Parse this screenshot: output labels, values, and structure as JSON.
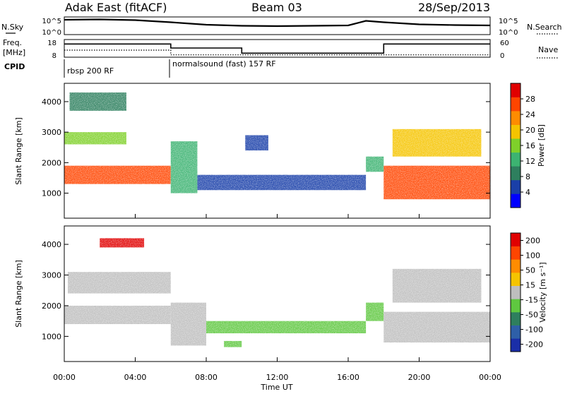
{
  "header": {
    "radar_name": "Adak East (fitACF)",
    "beam": "Beam 03",
    "date": "28/Sep/2013"
  },
  "left_labels": {
    "nsky": "N.Sky",
    "freq": "Freq.",
    "freq_unit": "[MHz]",
    "cpid": "CPID"
  },
  "right_labels": {
    "nsearch": "N.Search",
    "nave": "Nave"
  },
  "cpid_segments": [
    "rbsp 200 RF",
    "normalsound (fast) 157 RF"
  ],
  "colors": {
    "scale_power": [
      "#0000ff",
      "#1a3fa8",
      "#2e7f5e",
      "#3cb371",
      "#7fd02a",
      "#f5c400",
      "#ff8c00",
      "#ff4500",
      "#e00000"
    ],
    "scale_velocity": [
      "#1a2ea8",
      "#2e5fa8",
      "#2e7f5e",
      "#5fc840",
      "#bebebe",
      "#f5c400",
      "#ff8c00",
      "#ff4500",
      "#e00000"
    ],
    "gray": "#bebebe"
  },
  "chart_data": [
    {
      "type": "line",
      "panel": "noise",
      "yticks_left": [
        "10^5",
        "10^0"
      ],
      "yticks_right": [
        "10^5",
        "10^0"
      ],
      "series": [
        {
          "name": "N.Sky",
          "x_hours": [
            0,
            2,
            4,
            6,
            8,
            10,
            12,
            14,
            16,
            17,
            18,
            20,
            22,
            24
          ],
          "log10_values": [
            4.2,
            4.3,
            4.1,
            3.5,
            2.8,
            2.5,
            2.4,
            2.5,
            2.6,
            3.9,
            3.5,
            2.9,
            2.7,
            2.6
          ]
        }
      ]
    },
    {
      "type": "line",
      "panel": "frequency",
      "yticks_left": [
        "18",
        "8"
      ],
      "yticks_right": [
        "60",
        "0"
      ],
      "series": [
        {
          "name": "Freq.",
          "x_hours": [
            0,
            6,
            6,
            10,
            10,
            18,
            18,
            24
          ],
          "values": [
            15.5,
            15.5,
            13.2,
            13.2,
            10.3,
            10.3,
            15.5,
            15.5
          ]
        },
        {
          "name": "Nave",
          "x_hours": [
            0,
            6,
            6,
            24
          ],
          "values": [
            24,
            24,
            8,
            8
          ]
        }
      ]
    },
    {
      "type": "heatmap",
      "panel": "power",
      "ylabel": "Slant Range [km]",
      "colorbar_label": "Power [dB]",
      "colorbar_ticks": [
        "4",
        "8",
        "12",
        "16",
        "20",
        "24",
        "28"
      ],
      "yticks": [
        "1000",
        "2000",
        "3000",
        "4000"
      ],
      "ylim": [
        180,
        4600
      ],
      "xlim_hours": [
        0,
        24
      ],
      "bands": [
        {
          "x": [
            0.0,
            6.0
          ],
          "range_km": [
            1300,
            1900
          ],
          "level": 7
        },
        {
          "x": [
            0.0,
            3.5
          ],
          "range_km": [
            2600,
            3000
          ],
          "level": 4
        },
        {
          "x": [
            0.3,
            3.5
          ],
          "range_km": [
            3700,
            4300
          ],
          "level": 2
        },
        {
          "x": [
            6.0,
            7.5
          ],
          "range_km": [
            1000,
            2700
          ],
          "level": 3
        },
        {
          "x": [
            7.5,
            17.0
          ],
          "range_km": [
            1100,
            1600
          ],
          "level": 1
        },
        {
          "x": [
            10.2,
            11.5
          ],
          "range_km": [
            2400,
            2900
          ],
          "level": 1
        },
        {
          "x": [
            18.0,
            24.0
          ],
          "range_km": [
            800,
            1900
          ],
          "level": 7
        },
        {
          "x": [
            18.5,
            23.5
          ],
          "range_km": [
            2200,
            3100
          ],
          "level": 5
        },
        {
          "x": [
            17.0,
            18.0
          ],
          "range_km": [
            1700,
            2200
          ],
          "level": 3
        }
      ]
    },
    {
      "type": "heatmap",
      "panel": "velocity",
      "ylabel": "Slant Range [km]",
      "colorbar_label": "Velocity [m s⁻¹]",
      "colorbar_ticks": [
        "200",
        "100",
        "50",
        "15",
        "-15",
        "-50",
        "-100",
        "-200"
      ],
      "yticks": [
        "1000",
        "2000",
        "3000",
        "4000"
      ],
      "ylim": [
        180,
        4600
      ],
      "xlim_hours": [
        0,
        24
      ],
      "bands": [
        {
          "x": [
            0.0,
            6.0
          ],
          "range_km": [
            1400,
            2000
          ],
          "level": 4
        },
        {
          "x": [
            0.2,
            6.0
          ],
          "range_km": [
            2400,
            3100
          ],
          "level": 4
        },
        {
          "x": [
            2.0,
            4.5
          ],
          "range_km": [
            3900,
            4200
          ],
          "level": 8
        },
        {
          "x": [
            6.0,
            8.0
          ],
          "range_km": [
            700,
            2100
          ],
          "level": 4
        },
        {
          "x": [
            8.0,
            17.0
          ],
          "range_km": [
            1100,
            1500
          ],
          "level": 3
        },
        {
          "x": [
            9.0,
            10.0
          ],
          "range_km": [
            650,
            850
          ],
          "level": 3
        },
        {
          "x": [
            17.0,
            18.0
          ],
          "range_km": [
            1500,
            2100
          ],
          "level": 3
        },
        {
          "x": [
            18.0,
            24.0
          ],
          "range_km": [
            800,
            1800
          ],
          "level": 4
        },
        {
          "x": [
            18.5,
            23.5
          ],
          "range_km": [
            2100,
            3200
          ],
          "level": 4
        }
      ]
    }
  ],
  "xaxis": {
    "label": "Time UT",
    "ticks": [
      "00:00",
      "04:00",
      "08:00",
      "12:00",
      "16:00",
      "20:00",
      "00:00"
    ]
  }
}
